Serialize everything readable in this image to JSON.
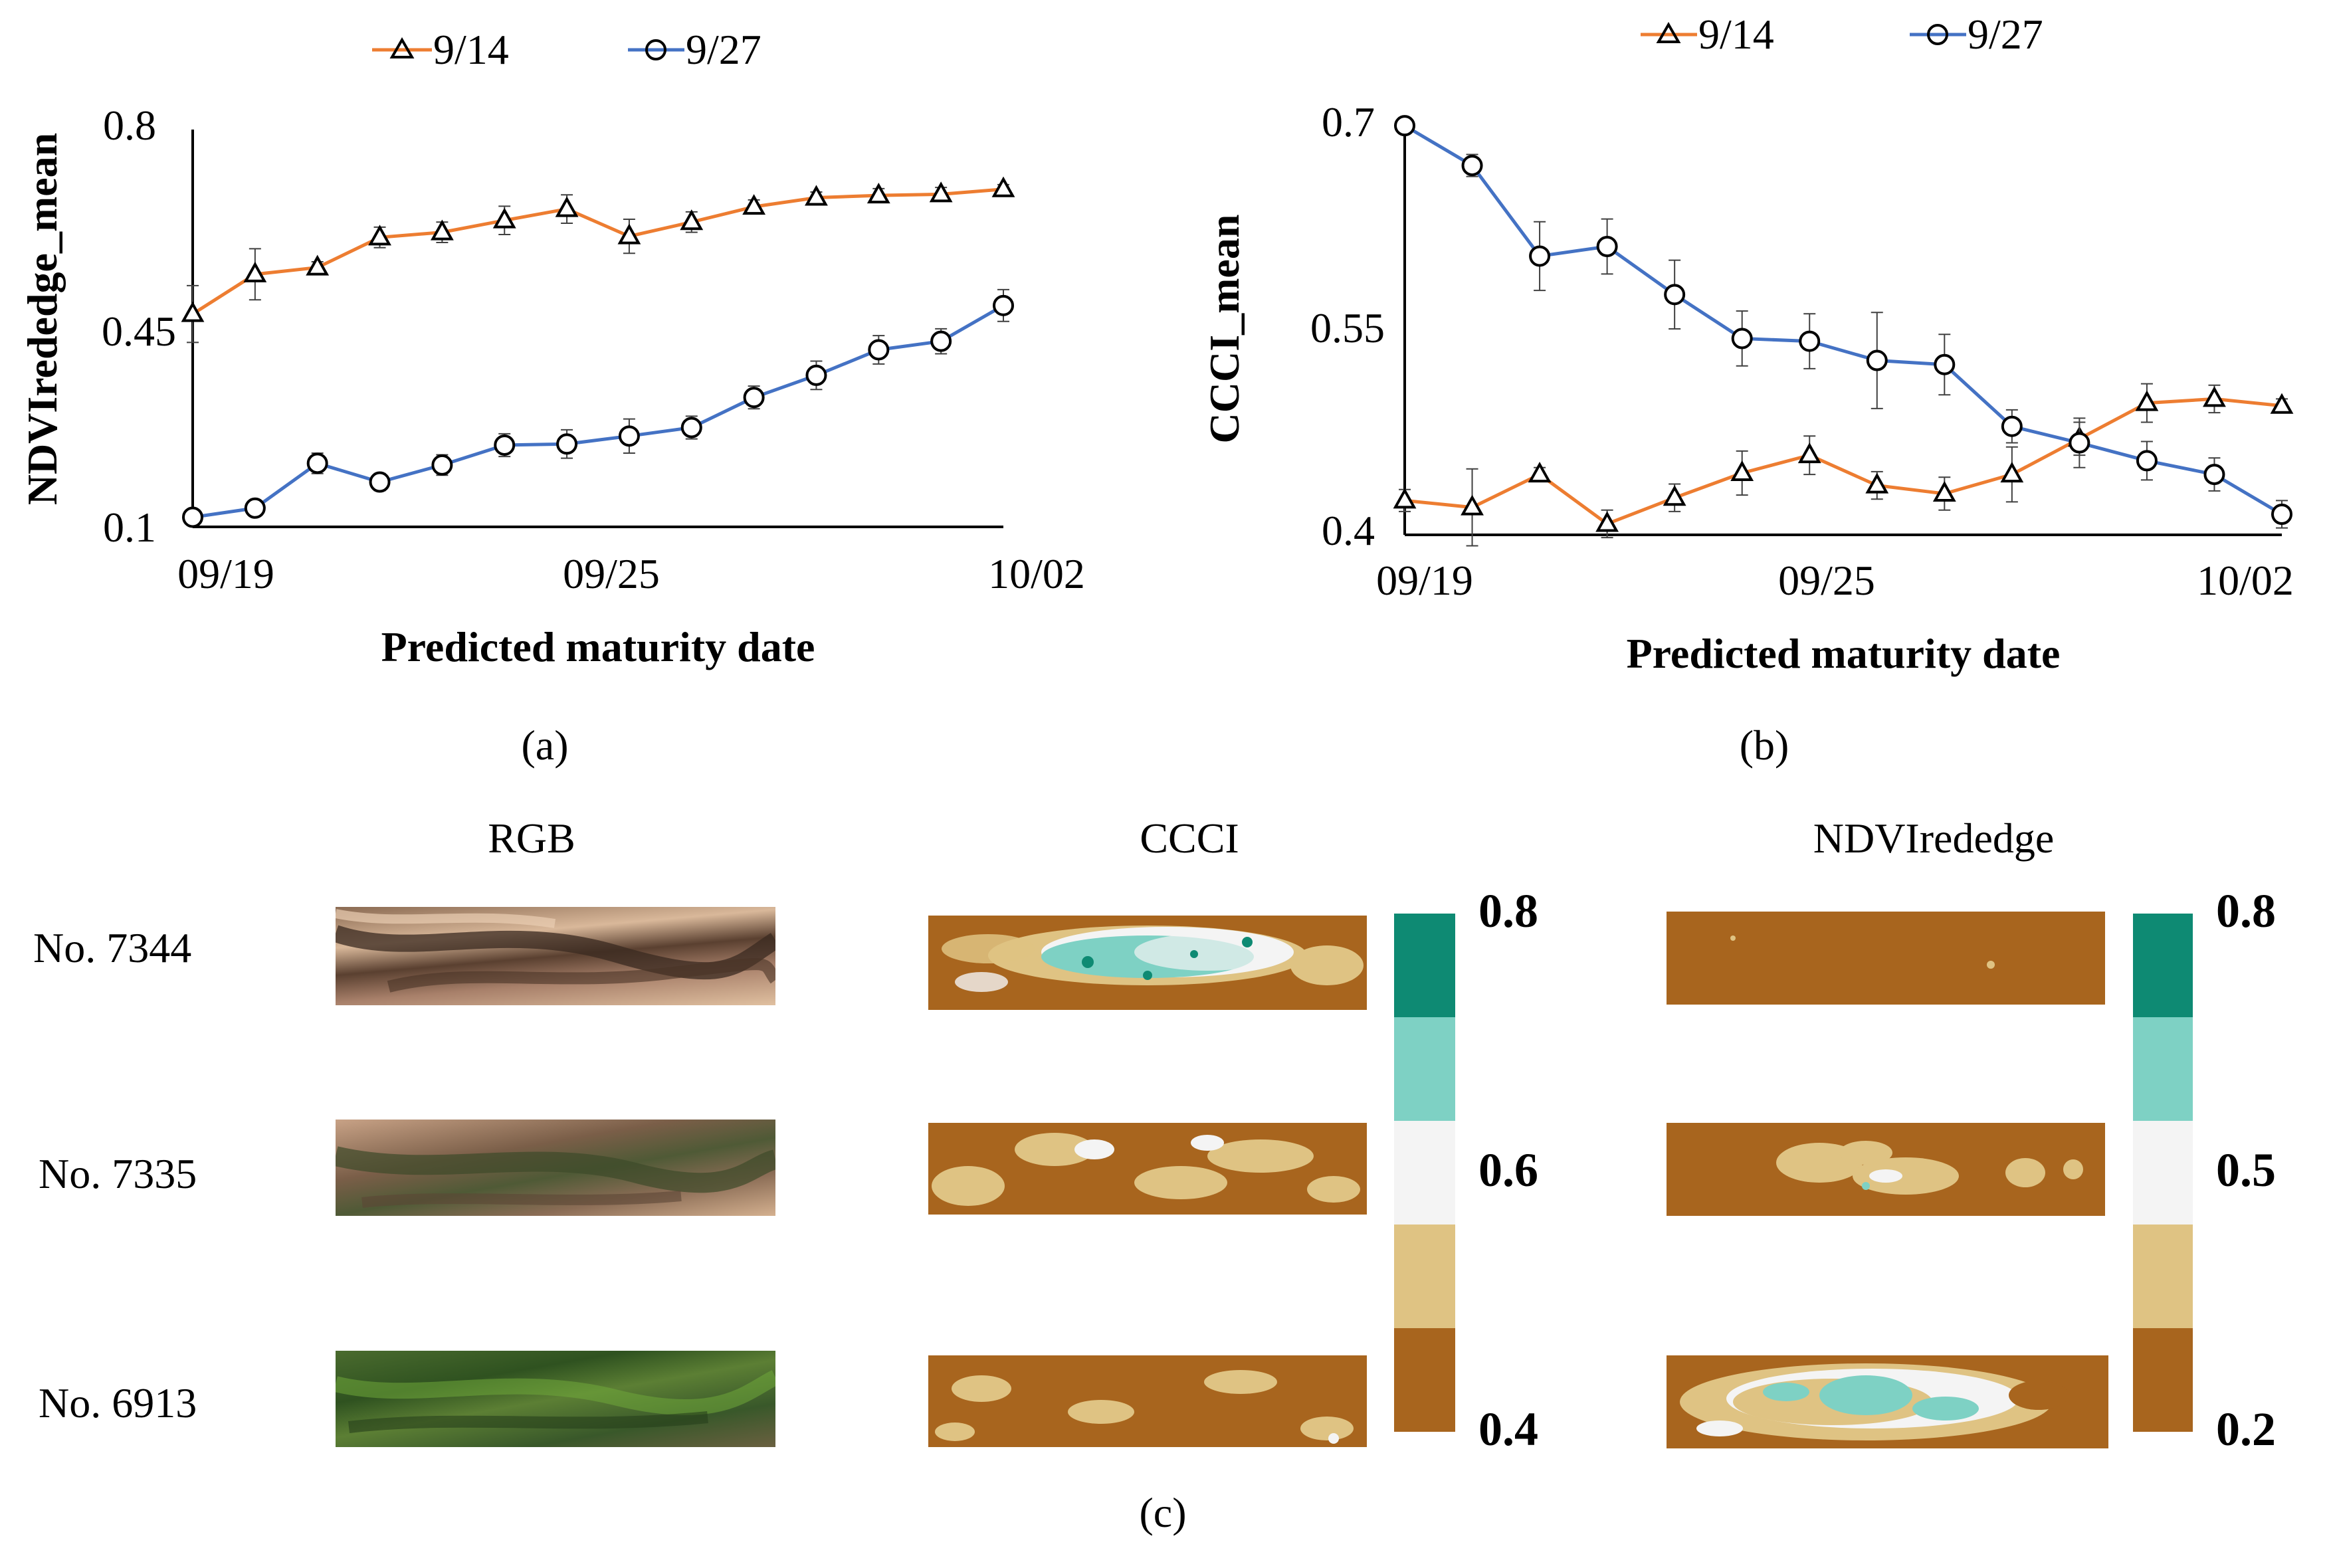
{
  "chart_data": [
    {
      "type": "line",
      "panel": "(a)",
      "ylabel": "NDVIrededge_mean",
      "xlabel": "Predicted maturity date",
      "ylim": [
        0.1,
        0.8
      ],
      "yticks": [
        "0.1",
        "0.45",
        "0.8"
      ],
      "xticks": [
        "09/19",
        "09/25",
        "10/02"
      ],
      "legend": {
        "location": "top-center"
      },
      "series": [
        {
          "name": "9/14",
          "color": "#ED7D31",
          "marker": "triangle",
          "values": [
            0.475,
            0.545,
            0.557,
            0.61,
            0.619,
            0.64,
            0.66,
            0.612,
            0.637,
            0.664,
            0.68,
            0.684,
            0.686,
            0.695
          ],
          "errors": [
            0.05,
            0.045,
            0.01,
            0.018,
            0.018,
            0.025,
            0.025,
            0.03,
            0.018,
            0.012,
            0.01,
            0.012,
            0.012,
            0.008
          ]
        },
        {
          "name": "9/27",
          "color": "#4472C4",
          "marker": "circle",
          "values": [
            0.117,
            0.133,
            0.212,
            0.179,
            0.209,
            0.244,
            0.246,
            0.26,
            0.275,
            0.328,
            0.367,
            0.412,
            0.427,
            0.49
          ],
          "errors": [
            0.005,
            0.006,
            0.018,
            0.015,
            0.018,
            0.02,
            0.025,
            0.03,
            0.02,
            0.02,
            0.025,
            0.025,
            0.022,
            0.028
          ]
        }
      ]
    },
    {
      "type": "line",
      "panel": "(b)",
      "ylabel": "CCCI_mean",
      "xlabel": "Predicted maturity date",
      "ylim": [
        0.4,
        0.7
      ],
      "yticks": [
        "0.4",
        "0.55",
        "0.7"
      ],
      "xticks": [
        "09/19",
        "09/25",
        "10/02"
      ],
      "legend": {
        "location": "top-center"
      },
      "series": [
        {
          "name": "9/14",
          "color": "#ED7D31",
          "marker": "triangle",
          "values": [
            0.425,
            0.42,
            0.444,
            0.408,
            0.427,
            0.445,
            0.458,
            0.436,
            0.43,
            0.444,
            0.47,
            0.496,
            0.499,
            0.494
          ],
          "errors": [
            0.008,
            0.028,
            0.005,
            0.01,
            0.01,
            0.016,
            0.014,
            0.01,
            0.012,
            0.02,
            0.012,
            0.014,
            0.01,
            0.005
          ]
        },
        {
          "name": "9/27",
          "color": "#4472C4",
          "marker": "circle",
          "values": [
            0.698,
            0.669,
            0.603,
            0.61,
            0.575,
            0.543,
            0.541,
            0.527,
            0.524,
            0.479,
            0.467,
            0.454,
            0.444,
            0.415
          ],
          "errors": [
            0.005,
            0.008,
            0.025,
            0.02,
            0.025,
            0.02,
            0.02,
            0.035,
            0.022,
            0.012,
            0.018,
            0.014,
            0.012,
            0.01
          ]
        }
      ]
    }
  ],
  "captions": {
    "a": "(a)",
    "b": "(b)",
    "c": "(c)"
  },
  "image_grid": {
    "column_titles": {
      "rgb": "RGB",
      "ccci": "CCCI",
      "ndvi": "NDVIrededge"
    },
    "rows": [
      {
        "label": "No. 7344"
      },
      {
        "label": "No. 7335"
      },
      {
        "label": "No. 6913"
      }
    ],
    "colorbars": {
      "ccci": {
        "top": "0.8",
        "mid": "0.6",
        "bottom": "0.4"
      },
      "ndvi": {
        "top": "0.8",
        "mid": "0.5",
        "bottom": "0.2"
      }
    },
    "palette": [
      "#A8651E",
      "#DFC383",
      "#F4F4F4",
      "#7ED1C4",
      "#0E8A73"
    ]
  }
}
